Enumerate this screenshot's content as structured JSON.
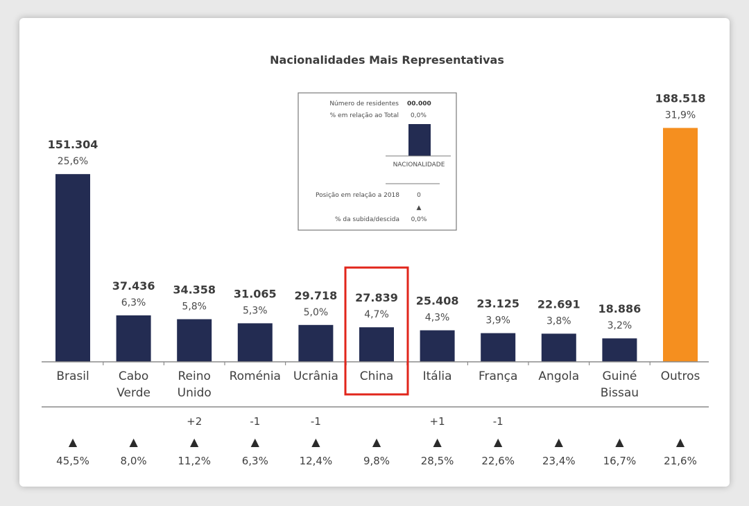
{
  "chart_data": {
    "type": "bar",
    "title": "Nacionalidades Mais Representativas",
    "categories": [
      [
        "Brasil"
      ],
      [
        "Cabo",
        "Verde"
      ],
      [
        "Reino",
        "Unido"
      ],
      [
        "Roménia"
      ],
      [
        "Ucrânia"
      ],
      [
        "China"
      ],
      [
        "Itália"
      ],
      [
        "França"
      ],
      [
        "Angola"
      ],
      [
        "Guiné",
        "Bissau"
      ],
      [
        "Outros"
      ]
    ],
    "values": [
      151304,
      37436,
      34358,
      31065,
      29718,
      27839,
      25408,
      23125,
      22691,
      18886,
      188518
    ],
    "value_labels": [
      "151.304",
      "37.436",
      "34.358",
      "31.065",
      "29.718",
      "27.839",
      "25.408",
      "23.125",
      "22.691",
      "18.886",
      "188.518"
    ],
    "percent_labels": [
      "25,6%",
      "6,3%",
      "5,8%",
      "5,3%",
      "5,0%",
      "4,7%",
      "4,3%",
      "3,9%",
      "3,8%",
      "3,2%",
      "31,9%"
    ],
    "position_change": [
      "",
      "",
      "+2",
      "-1",
      "-1",
      "",
      "+1",
      "-1",
      "",
      "",
      ""
    ],
    "growth_arrow": "▲",
    "growth_percent": [
      "45,5%",
      "8,0%",
      "11,2%",
      "6,3%",
      "12,4%",
      "9,8%",
      "28,5%",
      "22,6%",
      "23,4%",
      "16,7%",
      "21,6%"
    ],
    "highlighted_category": "China",
    "colors": {
      "bar": "#232c52",
      "outros": "#f58f1f",
      "highlight_box": "#e1251b",
      "axis": "#8a8a8a"
    },
    "legend": {
      "residents_label": "Número de residentes",
      "residents_value": "00.000",
      "share_label": "% em relação ao Total",
      "share_value": "0,0%",
      "nationality_label": "NACIONALIDADE",
      "position_label": "Posição em relação a 2018",
      "position_value": "0",
      "arrow": "▲",
      "change_label": "% da subida/descida",
      "change_value": "0,0%"
    }
  }
}
